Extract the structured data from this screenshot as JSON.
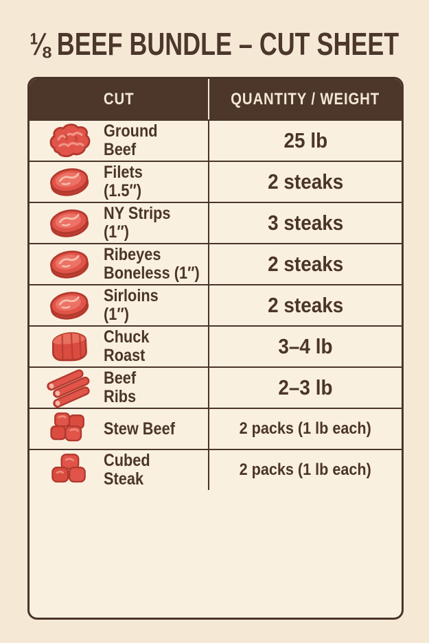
{
  "page": {
    "title": "⅛ BEEF BUNDLE – CUT SHEET",
    "colors": {
      "background": "#f5e9d6",
      "panel": "#f9f0e0",
      "header_brown": "#4d372b",
      "line_brown": "#4a342a",
      "text_brown": "#4b3528",
      "header_text": "#f3e8d3",
      "meat_red": "#e0544a",
      "meat_outline": "#b2392d",
      "meat_light": "#f6b8a8"
    }
  },
  "table": {
    "headers": [
      "CUT",
      "QUANTITY / WEIGHT"
    ],
    "rows": [
      {
        "icon": "ground-beef",
        "cut_line1": "Ground",
        "cut_line2": "Beef",
        "qty": "25 lb"
      },
      {
        "icon": "steak",
        "cut_line1": "Filets",
        "cut_line2": "(1.5″)",
        "qty": "2 steaks"
      },
      {
        "icon": "steak",
        "cut_line1": "NY Strips",
        "cut_line2": "(1″)",
        "qty": "3 steaks"
      },
      {
        "icon": "steak",
        "cut_line1": "Ribeyes",
        "cut_line2": "Boneless (1″)",
        "qty": "2 steaks"
      },
      {
        "icon": "steak",
        "cut_line1": "Sirloins",
        "cut_line2": "(1″)",
        "qty": "2 steaks"
      },
      {
        "icon": "roast",
        "cut_line1": "Chuck",
        "cut_line2": "Roast",
        "qty": "3–4 lb"
      },
      {
        "icon": "ribs",
        "cut_line1": "Beef",
        "cut_line2": "Ribs",
        "qty": "2–3 lb"
      },
      {
        "icon": "stew-cubes",
        "cut_line1": "Stew Beef",
        "cut_line2": "",
        "qty": "2 packs (1 lb each)"
      },
      {
        "icon": "cubed-steak",
        "cut_line1": "Cubed",
        "cut_line2": "Steak",
        "qty": "2 packs (1 lb each)"
      }
    ]
  },
  "chart_data": {
    "type": "table",
    "title": "⅛ BEEF BUNDLE – CUT SHEET",
    "columns": [
      "CUT",
      "QUANTITY / WEIGHT"
    ],
    "rows": [
      [
        "Ground Beef",
        "25 lb"
      ],
      [
        "Filets (1.5″)",
        "2 steaks"
      ],
      [
        "NY Strips (1″)",
        "3 steaks"
      ],
      [
        "Ribeyes Boneless (1″)",
        "2 steaks"
      ],
      [
        "Sirloins (1″)",
        "2 steaks"
      ],
      [
        "Chuck Roast",
        "3–4 lb"
      ],
      [
        "Beef Ribs",
        "2–3 lb"
      ],
      [
        "Stew Beef",
        "2 packs (1 lb each)"
      ],
      [
        "Cubed Steak",
        "2 packs (1 lb each)"
      ]
    ]
  }
}
